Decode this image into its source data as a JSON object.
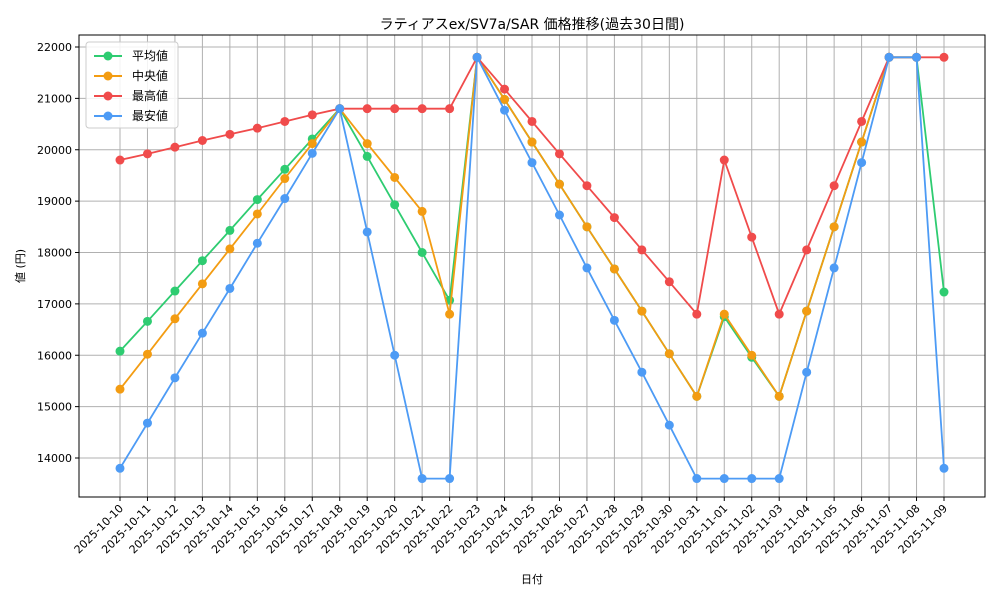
{
  "chart_data": {
    "type": "line",
    "title": "ラティアスex/SV7a/SAR 価格推移(過去30日間)",
    "xlabel": "日付",
    "ylabel": "値 (円)",
    "ylim": [
      13250,
      22250
    ],
    "yticks": [
      14000,
      15000,
      16000,
      17000,
      18000,
      19000,
      20000,
      21000,
      22000
    ],
    "grid": true,
    "legend_position": "upper left",
    "categories": [
      "2025-10-10",
      "2025-10-11",
      "2025-10-12",
      "2025-10-13",
      "2025-10-14",
      "2025-10-15",
      "2025-10-16",
      "2025-10-17",
      "2025-10-18",
      "2025-10-19",
      "2025-10-20",
      "2025-10-21",
      "2025-10-22",
      "2025-10-23",
      "2025-10-24",
      "2025-10-25",
      "2025-10-26",
      "2025-10-27",
      "2025-10-28",
      "2025-10-29",
      "2025-10-30",
      "2025-10-31",
      "2025-11-01",
      "2025-11-02",
      "2025-11-03",
      "2025-11-04",
      "2025-11-05",
      "2025-11-06",
      "2025-11-07",
      "2025-11-08",
      "2025-11-09"
    ],
    "series": [
      {
        "name": "平均値",
        "color": "#2ecc71",
        "values": [
          16080,
          16660,
          17250,
          17840,
          18430,
          19030,
          19620,
          20210,
          20800,
          19870,
          18930,
          18000,
          17070,
          21800,
          20980,
          20150,
          19330,
          18500,
          17680,
          16860,
          16030,
          15200,
          16750,
          15960,
          15200,
          16860,
          18500,
          20150,
          21800,
          21800,
          17230
        ]
      },
      {
        "name": "中央値",
        "color": "#f39c12",
        "values": [
          15340,
          16020,
          16710,
          17390,
          18070,
          18750,
          19440,
          20120,
          20800,
          20120,
          19460,
          18800,
          16800,
          21800,
          20980,
          20150,
          19330,
          18500,
          17680,
          16860,
          16030,
          15200,
          16800,
          16000,
          15200,
          16860,
          18500,
          20150,
          21800,
          21800,
          null
        ]
      },
      {
        "name": "最高値",
        "color": "#f04b4b",
        "values": [
          19800,
          19920,
          20050,
          20180,
          20300,
          20420,
          20550,
          20680,
          20800,
          20800,
          20800,
          20800,
          20800,
          21800,
          21180,
          20550,
          19920,
          19300,
          18680,
          18050,
          17430,
          16800,
          19800,
          18300,
          16800,
          18050,
          19300,
          20550,
          21800,
          21800,
          21800
        ]
      },
      {
        "name": "最安値",
        "color": "#4d9bf5",
        "values": [
          13800,
          14680,
          15560,
          16430,
          17300,
          18180,
          19050,
          19930,
          20800,
          18400,
          16000,
          13600,
          13600,
          21800,
          20770,
          19750,
          18730,
          17700,
          16680,
          15670,
          14640,
          13600,
          13600,
          13600,
          13600,
          15670,
          17700,
          19750,
          21800,
          21800,
          13800
        ]
      }
    ]
  }
}
